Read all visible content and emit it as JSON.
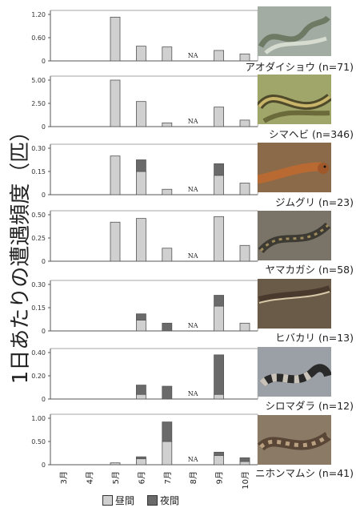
{
  "y_axis_title": "1日あたりの遭遇頻度（匹）",
  "na_label": "NA",
  "colors": {
    "day": "#d0d0d0",
    "night": "#6a6a6a",
    "outline": "#555555"
  },
  "legend": {
    "day": "昼間",
    "night": "夜間"
  },
  "months": [
    "3月",
    "4月",
    "5月",
    "6月",
    "7月",
    "8月",
    "9月",
    "10月"
  ],
  "species": [
    {
      "label": "アオダイショウ (n=71)"
    },
    {
      "label": "シマヘビ (n=346)"
    },
    {
      "label": "ジムグリ (n=23)"
    },
    {
      "label": "ヤマカガシ (n=58)"
    },
    {
      "label": "ヒバカリ (n=13)"
    },
    {
      "label": "シロマダラ (n=12)"
    },
    {
      "label": "ニホンマムシ (n=41)"
    }
  ],
  "chart_data": [
    {
      "type": "bar",
      "stacked": true,
      "title": "アオダイショウ (n=71)",
      "categories": [
        "3月",
        "4月",
        "5月",
        "6月",
        "7月",
        "8月",
        "9月",
        "10月"
      ],
      "yticks": [
        "0",
        "0.60",
        "1.20"
      ],
      "ylim": [
        0,
        1.2
      ],
      "series": [
        {
          "name": "昼間",
          "values": [
            0,
            0,
            1.13,
            0.38,
            0.36,
            null,
            0.27,
            0.18
          ]
        },
        {
          "name": "夜間",
          "values": [
            0,
            0,
            0,
            0,
            0,
            null,
            0,
            0
          ]
        }
      ],
      "na": [
        "8月"
      ]
    },
    {
      "type": "bar",
      "stacked": true,
      "title": "シマヘビ (n=346)",
      "categories": [
        "3月",
        "4月",
        "5月",
        "6月",
        "7月",
        "8月",
        "9月",
        "10月"
      ],
      "yticks": [
        "0",
        "2.50",
        "5.00"
      ],
      "ylim": [
        0,
        5.0
      ],
      "series": [
        {
          "name": "昼間",
          "values": [
            0,
            0,
            5.0,
            2.7,
            0.4,
            null,
            2.1,
            0.7
          ]
        },
        {
          "name": "夜間",
          "values": [
            0,
            0,
            0,
            0,
            0,
            null,
            0,
            0
          ]
        }
      ],
      "na": [
        "8月"
      ]
    },
    {
      "type": "bar",
      "stacked": true,
      "title": "ジムグリ (n=23)",
      "categories": [
        "3月",
        "4月",
        "5月",
        "6月",
        "7月",
        "8月",
        "9月",
        "10月"
      ],
      "yticks": [
        "0",
        "0.15",
        "0.30"
      ],
      "ylim": [
        0,
        0.3
      ],
      "series": [
        {
          "name": "昼間",
          "values": [
            0,
            0,
            0.25,
            0.15,
            0.035,
            null,
            0.125,
            0.075
          ]
        },
        {
          "name": "夜間",
          "values": [
            0,
            0,
            0,
            0.075,
            0,
            null,
            0.075,
            0
          ]
        }
      ],
      "na": [
        "8月"
      ]
    },
    {
      "type": "bar",
      "stacked": true,
      "title": "ヤマカガシ (n=58)",
      "categories": [
        "3月",
        "4月",
        "5月",
        "6月",
        "7月",
        "8月",
        "9月",
        "10月"
      ],
      "yticks": [
        "0",
        "0.25",
        "0.50"
      ],
      "ylim": [
        0,
        0.5
      ],
      "series": [
        {
          "name": "昼間",
          "values": [
            0,
            0,
            0.42,
            0.46,
            0.14,
            null,
            0.48,
            0.17
          ]
        },
        {
          "name": "夜間",
          "values": [
            0,
            0,
            0,
            0,
            0,
            null,
            0,
            0
          ]
        }
      ],
      "na": [
        "8月"
      ]
    },
    {
      "type": "bar",
      "stacked": true,
      "title": "ヒバカリ (n=13)",
      "categories": [
        "3月",
        "4月",
        "5月",
        "6月",
        "7月",
        "8月",
        "9月",
        "10月"
      ],
      "yticks": [
        "0",
        "0.15",
        "0.30"
      ],
      "ylim": [
        0,
        0.3
      ],
      "series": [
        {
          "name": "昼間",
          "values": [
            0,
            0,
            0,
            0.07,
            0,
            null,
            0.16,
            0.05
          ]
        },
        {
          "name": "夜間",
          "values": [
            0,
            0,
            0,
            0.04,
            0.05,
            null,
            0.07,
            0
          ]
        }
      ],
      "na": [
        "8月"
      ]
    },
    {
      "type": "bar",
      "stacked": true,
      "title": "シロマダラ (n=12)",
      "categories": [
        "3月",
        "4月",
        "5月",
        "6月",
        "7月",
        "8月",
        "9月",
        "10月"
      ],
      "yticks": [
        "0",
        "0.20",
        "0.40"
      ],
      "ylim": [
        0,
        0.4
      ],
      "series": [
        {
          "name": "昼間",
          "values": [
            0,
            0,
            0,
            0.04,
            0,
            null,
            0.04,
            0
          ]
        },
        {
          "name": "夜間",
          "values": [
            0,
            0,
            0,
            0.08,
            0.11,
            null,
            0.34,
            0
          ]
        }
      ],
      "na": [
        "8月"
      ]
    },
    {
      "type": "bar",
      "stacked": true,
      "title": "ニホンマムシ (n=41)",
      "categories": [
        "3月",
        "4月",
        "5月",
        "6月",
        "7月",
        "8月",
        "9月",
        "10月"
      ],
      "yticks": [
        "0",
        "0.50",
        "1.00"
      ],
      "ylim": [
        0,
        1.0
      ],
      "series": [
        {
          "name": "昼間",
          "values": [
            0,
            0,
            0.04,
            0.13,
            0.5,
            null,
            0.2,
            0.07
          ]
        },
        {
          "name": "夜間",
          "values": [
            0,
            0,
            0,
            0.04,
            0.42,
            null,
            0.07,
            0.08
          ]
        }
      ],
      "na": [
        "8月"
      ]
    }
  ]
}
